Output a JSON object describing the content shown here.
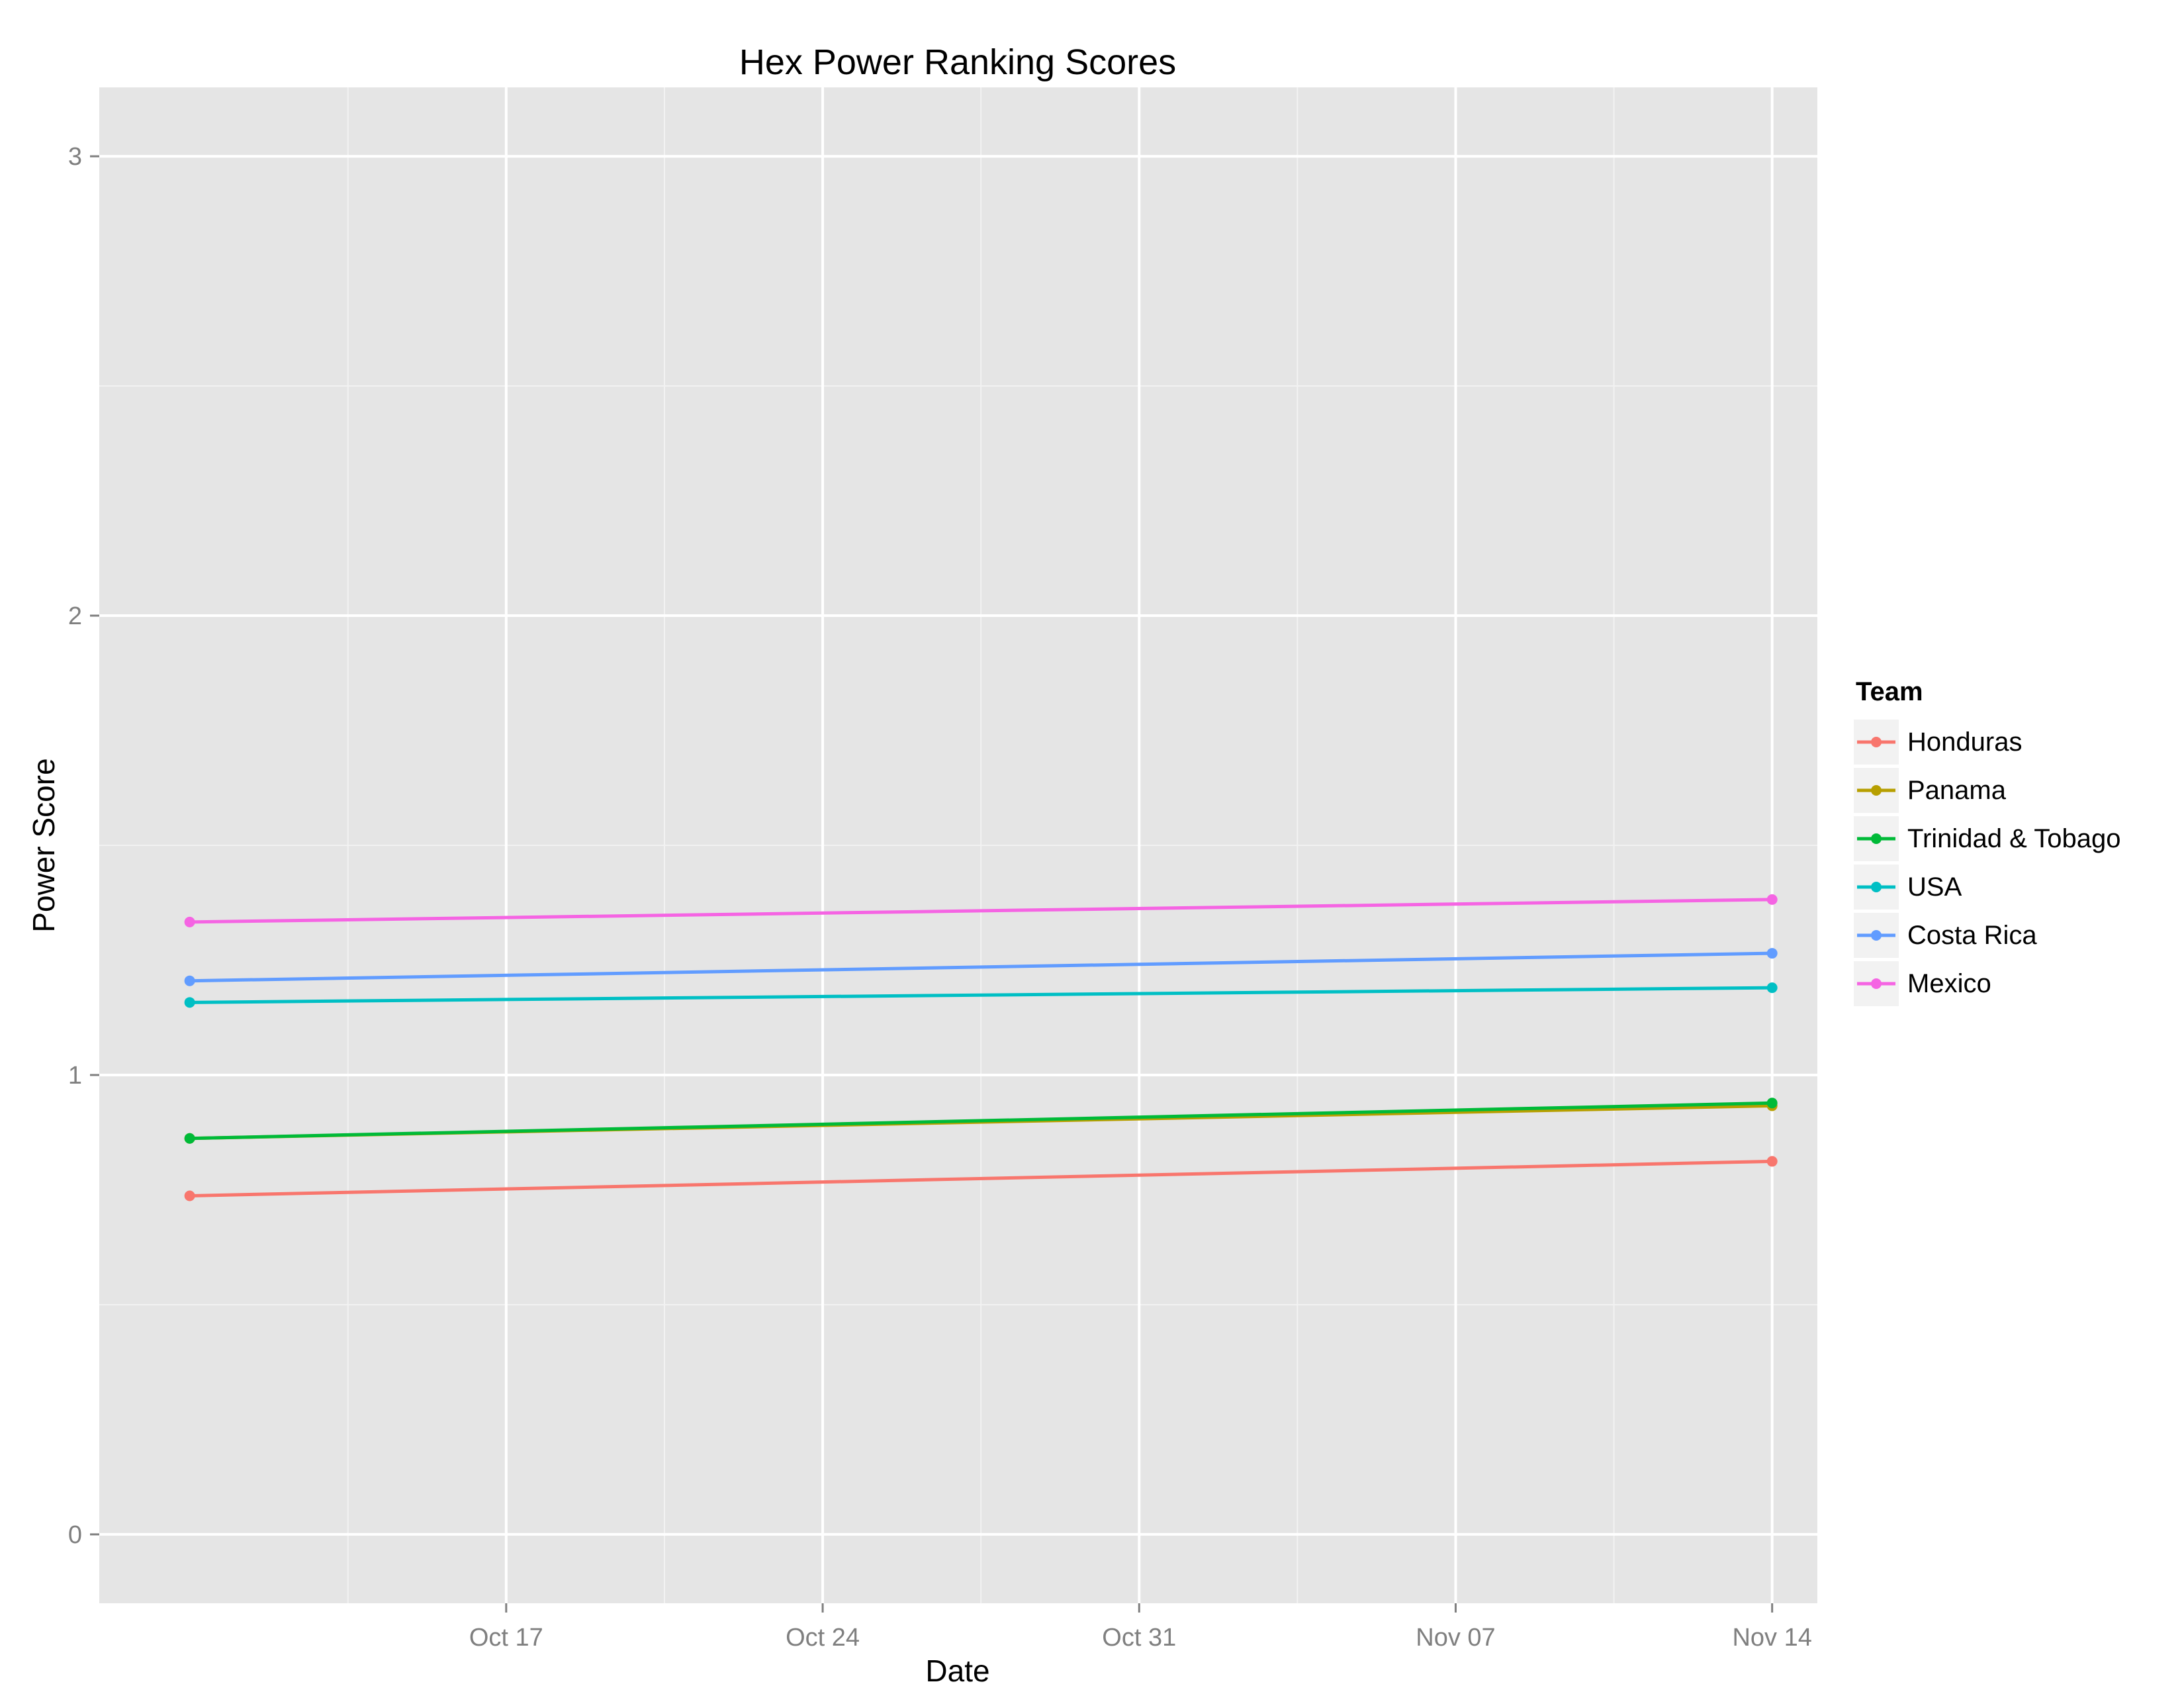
{
  "chart_data": {
    "type": "line",
    "title": "Hex Power Ranking Scores",
    "xlabel": "Date",
    "ylabel": "Power Score",
    "x": [
      "2015-10-10",
      "2015-11-14"
    ],
    "xlim": [
      "2015-10-08",
      "2015-11-15"
    ],
    "ylim": [
      -0.15,
      3.15
    ],
    "x_ticks": [
      {
        "date": "2015-10-17",
        "label": "Oct 17"
      },
      {
        "date": "2015-10-24",
        "label": "Oct 24"
      },
      {
        "date": "2015-10-31",
        "label": "Oct 31"
      },
      {
        "date": "2015-11-07",
        "label": "Nov 07"
      },
      {
        "date": "2015-11-14",
        "label": "Nov 14"
      }
    ],
    "y_ticks": [
      0,
      1,
      2,
      3
    ],
    "grid": true,
    "legend": {
      "title": "Team",
      "position": "right"
    },
    "series": [
      {
        "name": "Honduras",
        "color": "#F8766D",
        "values": [
          0.737,
          0.812
        ]
      },
      {
        "name": "Panama",
        "color": "#B79F00",
        "values": [
          0.862,
          0.933
        ]
      },
      {
        "name": "Trinidad & Tobago",
        "color": "#00BA38",
        "values": [
          0.862,
          0.939
        ]
      },
      {
        "name": "USA",
        "color": "#00BFC4",
        "values": [
          1.158,
          1.19
        ]
      },
      {
        "name": "Costa Rica",
        "color": "#619CFF",
        "values": [
          1.205,
          1.265
        ]
      },
      {
        "name": "Mexico",
        "color": "#F564E3",
        "values": [
          1.333,
          1.382
        ]
      }
    ]
  }
}
